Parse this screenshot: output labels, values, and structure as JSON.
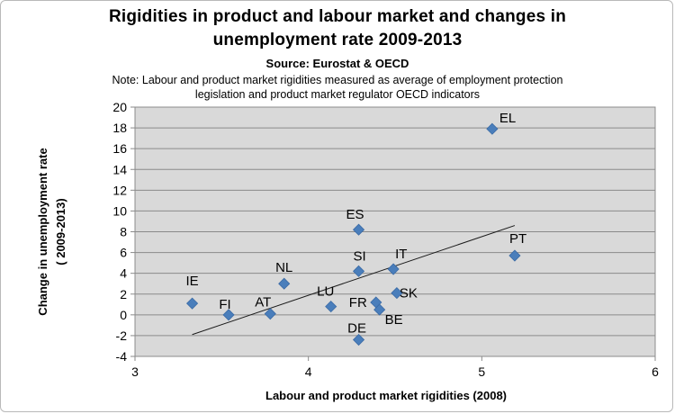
{
  "chart_data": {
    "type": "scatter",
    "title_line1": "Rigidities in product and labour market and changes in",
    "title_line2": "unemployment rate 2009-2013",
    "subtitle": "Source: Eurostat & OECD",
    "note_line1": "Note: Labour and product market rigidities measured as average of employment protection",
    "note_line2": "legislation and product market regulator OECD indicators",
    "xlabel": "Labour and product market rigidities (2008)",
    "ylabel_line1": "Change in unemployment rate",
    "ylabel_line2": "( 2009-2013)",
    "xlim": [
      3,
      6
    ],
    "ylim": [
      -4,
      20
    ],
    "xticks": [
      "3",
      "4",
      "5",
      "6"
    ],
    "yticks": [
      "-4",
      "-2",
      "0",
      "2",
      "4",
      "6",
      "8",
      "10",
      "12",
      "14",
      "16",
      "18",
      "20"
    ],
    "grid": "horizontal",
    "legend": "none",
    "marker_color": "#4a7ebb",
    "plot_background": "#d9d9d9",
    "trendline": {
      "x1": 3.33,
      "y1": -1.9,
      "x2": 5.19,
      "y2": 8.6
    },
    "points": [
      {
        "label": "EL",
        "x": 5.06,
        "y": 17.9
      },
      {
        "label": "PT",
        "x": 5.19,
        "y": 5.7
      },
      {
        "label": "ES",
        "x": 4.29,
        "y": 8.2
      },
      {
        "label": "IT",
        "x": 4.49,
        "y": 4.4
      },
      {
        "label": "SI",
        "x": 4.29,
        "y": 4.2
      },
      {
        "label": "NL",
        "x": 3.86,
        "y": 3.0
      },
      {
        "label": "IE",
        "x": 3.33,
        "y": 1.1
      },
      {
        "label": "FI",
        "x": 3.54,
        "y": 0.0
      },
      {
        "label": "AT",
        "x": 3.78,
        "y": 0.1
      },
      {
        "label": "LU",
        "x": 4.13,
        "y": 0.8
      },
      {
        "label": "FR",
        "x": 4.39,
        "y": 1.2
      },
      {
        "label": "BE",
        "x": 4.41,
        "y": 0.5
      },
      {
        "label": "SK",
        "x": 4.51,
        "y": 2.1
      },
      {
        "label": "DE",
        "x": 4.29,
        "y": -2.4
      }
    ]
  }
}
